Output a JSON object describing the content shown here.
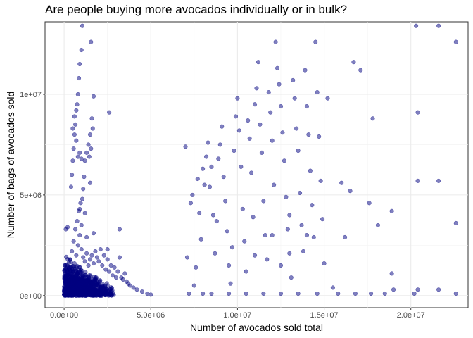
{
  "chart_data": {
    "type": "scatter",
    "title": "Are people buying more avocados individually or in bulk?",
    "xlabel": "Number of avocados sold total",
    "ylabel": "Number of bags of avocados sold",
    "xlim": [
      -1100000,
      23300000
    ],
    "ylim": [
      -600000,
      13600000
    ],
    "x_ticks": [
      0,
      5000000,
      10000000,
      15000000,
      20000000
    ],
    "x_tick_labels": [
      "0.0e+00",
      "5.0e+06",
      "1.0e+07",
      "1.5e+07",
      "2.0e+07"
    ],
    "y_ticks": [
      0,
      5000000,
      10000000
    ],
    "y_tick_labels": [
      "0e+00",
      "5e+06",
      "1e+07"
    ],
    "grid": true,
    "point_color": "#000080",
    "point_opacity": 0.5,
    "series": [
      {
        "points": [
          [
            50000,
            80000
          ],
          [
            100000,
            150000
          ],
          [
            150000,
            250000
          ],
          [
            200000,
            400000
          ],
          [
            300000,
            600000
          ],
          [
            400000,
            900000
          ],
          [
            500000,
            1200000
          ],
          [
            600000,
            1600000
          ],
          [
            700000,
            2000000
          ],
          [
            800000,
            2500000
          ],
          [
            900000,
            3000000
          ],
          [
            200000,
            3400000
          ],
          [
            100000,
            3300000
          ],
          [
            350000,
            1800000
          ],
          [
            450000,
            2200000
          ],
          [
            550000,
            2700000
          ],
          [
            650000,
            3300000
          ],
          [
            750000,
            3700000
          ],
          [
            850000,
            4200000
          ],
          [
            950000,
            4600000
          ],
          [
            1000000,
            2300000
          ],
          [
            1100000,
            1900000
          ],
          [
            1200000,
            1700000
          ],
          [
            1300000,
            2100000
          ],
          [
            1400000,
            1500000
          ],
          [
            1500000,
            1800000
          ],
          [
            1600000,
            2000000
          ],
          [
            1700000,
            1600000
          ],
          [
            1800000,
            2200000
          ],
          [
            1900000,
            1900000
          ],
          [
            2000000,
            1700000
          ],
          [
            2100000,
            2300000
          ],
          [
            2200000,
            1500000
          ],
          [
            2300000,
            2000000
          ],
          [
            2400000,
            1300000
          ],
          [
            2500000,
            1800000
          ],
          [
            2600000,
            1200000
          ],
          [
            2700000,
            1500000
          ],
          [
            2800000,
            1000000
          ],
          [
            2900000,
            1400000
          ],
          [
            3000000,
            900000
          ],
          [
            3100000,
            1200000
          ],
          [
            3200000,
            1900000
          ],
          [
            3300000,
            900000
          ],
          [
            3400000,
            800000
          ],
          [
            3500000,
            1100000
          ],
          [
            3600000,
            700000
          ],
          [
            3700000,
            600000
          ],
          [
            3800000,
            500000
          ],
          [
            4000000,
            400000
          ],
          [
            4200000,
            300000
          ],
          [
            4500000,
            200000
          ],
          [
            4800000,
            100000
          ],
          [
            5000000,
            50000
          ],
          [
            3200000,
            3300000
          ],
          [
            2500000,
            2300000
          ],
          [
            1700000,
            3100000
          ],
          [
            1300000,
            2900000
          ],
          [
            1000000,
            3500000
          ],
          [
            400000,
            5400000
          ],
          [
            450000,
            6000000
          ],
          [
            500000,
            6700000
          ],
          [
            550000,
            7300000
          ],
          [
            600000,
            8000000
          ],
          [
            650000,
            8500000
          ],
          [
            700000,
            9200000
          ],
          [
            750000,
            9500000
          ],
          [
            800000,
            10000000
          ],
          [
            850000,
            10800000
          ],
          [
            900000,
            11500000
          ],
          [
            1000000,
            12200000
          ],
          [
            1050000,
            13400000
          ],
          [
            1550000,
            12600000
          ],
          [
            500000,
            8300000
          ],
          [
            600000,
            8900000
          ],
          [
            700000,
            7700000
          ],
          [
            800000,
            6900000
          ],
          [
            900000,
            7100000
          ],
          [
            1000000,
            6800000
          ],
          [
            1050000,
            4800000
          ],
          [
            1100000,
            5300000
          ],
          [
            1150000,
            5900000
          ],
          [
            1200000,
            6700000
          ],
          [
            1300000,
            7100000
          ],
          [
            1400000,
            7500000
          ],
          [
            1500000,
            8000000
          ],
          [
            1600000,
            8800000
          ],
          [
            1700000,
            9900000
          ],
          [
            1650000,
            8300000
          ],
          [
            1550000,
            7300000
          ],
          [
            1450000,
            6900000
          ],
          [
            2600000,
            9100000
          ],
          [
            1500000,
            5600000
          ],
          [
            1200000,
            4100000
          ],
          [
            900000,
            4300000
          ],
          [
            7000000,
            7400000
          ],
          [
            7300000,
            4600000
          ],
          [
            7100000,
            1900000
          ],
          [
            7200000,
            100000
          ],
          [
            7500000,
            500000
          ],
          [
            7600000,
            1400000
          ],
          [
            7400000,
            5000000
          ],
          [
            7700000,
            5800000
          ],
          [
            7800000,
            4100000
          ],
          [
            7900000,
            2800000
          ],
          [
            8000000,
            6300000
          ],
          [
            8100000,
            5500000
          ],
          [
            8200000,
            6900000
          ],
          [
            8300000,
            7600000
          ],
          [
            8400000,
            5400000
          ],
          [
            8500000,
            6400000
          ],
          [
            8600000,
            4000000
          ],
          [
            8700000,
            2100000
          ],
          [
            8800000,
            3700000
          ],
          [
            8900000,
            6800000
          ],
          [
            9000000,
            7500000
          ],
          [
            9100000,
            8400000
          ],
          [
            9200000,
            5900000
          ],
          [
            9300000,
            4700000
          ],
          [
            9400000,
            3200000
          ],
          [
            9500000,
            1500000
          ],
          [
            9600000,
            600000
          ],
          [
            9700000,
            2400000
          ],
          [
            9800000,
            7200000
          ],
          [
            9900000,
            8900000
          ],
          [
            10000000,
            9800000
          ],
          [
            10100000,
            8200000
          ],
          [
            10200000,
            6400000
          ],
          [
            10300000,
            4300000
          ],
          [
            10400000,
            2700000
          ],
          [
            10500000,
            1200000
          ],
          [
            10600000,
            8700000
          ],
          [
            10700000,
            7800000
          ],
          [
            10800000,
            6100000
          ],
          [
            10900000,
            3900000
          ],
          [
            11000000,
            9500000
          ],
          [
            11100000,
            10300000
          ],
          [
            11200000,
            11600000
          ],
          [
            11300000,
            8500000
          ],
          [
            11400000,
            7100000
          ],
          [
            11500000,
            4700000
          ],
          [
            11600000,
            3000000
          ],
          [
            11700000,
            1800000
          ],
          [
            11800000,
            10100000
          ],
          [
            11900000,
            9100000
          ],
          [
            12000000,
            7700000
          ],
          [
            12100000,
            5500000
          ],
          [
            12200000,
            12600000
          ],
          [
            12300000,
            11300000
          ],
          [
            12400000,
            10500000
          ],
          [
            12500000,
            9400000
          ],
          [
            12600000,
            8100000
          ],
          [
            12700000,
            6700000
          ],
          [
            12800000,
            4900000
          ],
          [
            12900000,
            3300000
          ],
          [
            13000000,
            2100000
          ],
          [
            13100000,
            900000
          ],
          [
            13200000,
            10700000
          ],
          [
            13300000,
            9800000
          ],
          [
            13400000,
            8300000
          ],
          [
            13500000,
            7200000
          ],
          [
            13600000,
            5100000
          ],
          [
            13700000,
            3500000
          ],
          [
            13800000,
            2200000
          ],
          [
            13900000,
            11200000
          ],
          [
            14000000,
            9400000
          ],
          [
            14100000,
            8000000
          ],
          [
            14200000,
            6200000
          ],
          [
            14300000,
            4500000
          ],
          [
            14400000,
            2900000
          ],
          [
            14500000,
            12600000
          ],
          [
            14600000,
            10100000
          ],
          [
            14700000,
            7900000
          ],
          [
            14800000,
            5700000
          ],
          [
            14900000,
            3800000
          ],
          [
            15000000,
            1600000
          ],
          [
            15200000,
            9800000
          ],
          [
            15500000,
            400000
          ],
          [
            16000000,
            5600000
          ],
          [
            16200000,
            2900000
          ],
          [
            16500000,
            5200000
          ],
          [
            16700000,
            11600000
          ],
          [
            17100000,
            11200000
          ],
          [
            17600000,
            4600000
          ],
          [
            17800000,
            8800000
          ],
          [
            18100000,
            3500000
          ],
          [
            18500000,
            100000
          ],
          [
            18900000,
            4200000
          ],
          [
            18900000,
            1100000
          ],
          [
            20300000,
            13400000
          ],
          [
            20400000,
            9100000
          ],
          [
            20400000,
            5700000
          ],
          [
            20400000,
            300000
          ],
          [
            21600000,
            13400000
          ],
          [
            21600000,
            5700000
          ],
          [
            21600000,
            300000
          ],
          [
            22600000,
            12600000
          ],
          [
            22600000,
            3600000
          ],
          [
            22600000,
            100000
          ],
          [
            17700000,
            100000
          ],
          [
            20200000,
            100000
          ],
          [
            19000000,
            300000
          ],
          [
            16800000,
            100000
          ],
          [
            15800000,
            100000
          ],
          [
            14600000,
            100000
          ],
          [
            13500000,
            100000
          ],
          [
            12500000,
            100000
          ],
          [
            11500000,
            100000
          ],
          [
            10500000,
            100000
          ],
          [
            9500000,
            100000
          ],
          [
            8500000,
            100000
          ],
          [
            8000000,
            100000
          ],
          [
            12000000,
            3000000
          ],
          [
            11000000,
            2000000
          ],
          [
            13000000,
            4000000
          ],
          [
            14000000,
            3000000
          ],
          [
            12500000,
            1500000
          ]
        ]
      }
    ]
  }
}
